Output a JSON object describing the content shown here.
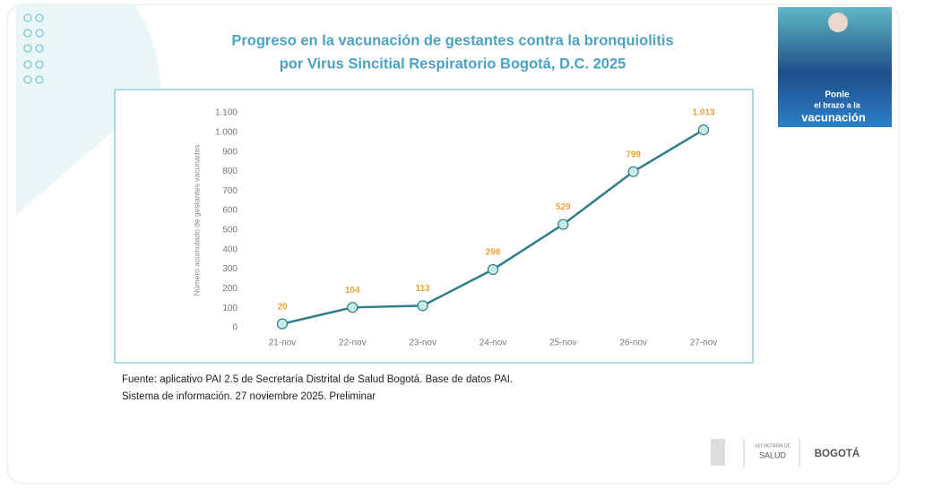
{
  "chart_data": {
    "type": "line",
    "title_lines": [
      "Progreso en la vacunación de gestantes contra la bronquiolitis",
      "por Virus Sincitial Respiratorio Bogotá, D.C. 2025"
    ],
    "y_label": "Número acumulado de gestantes vacunadas",
    "categories": [
      "21-nov",
      "22-nov",
      "23-nov",
      "24-nov",
      "25-nov",
      "26-nov",
      "27-nov"
    ],
    "values": [
      20,
      104,
      113,
      298,
      529,
      799,
      1013
    ],
    "value_labels": [
      "20",
      "104",
      "113",
      "298",
      "529",
      "799",
      "1.013"
    ],
    "color": "#2e7f89",
    "marker_color": "#c9ece6",
    "label_color": "#e9a43b",
    "ylim": [
      0,
      1100
    ],
    "yticks": [
      0,
      100,
      200,
      300,
      400,
      500,
      600,
      700,
      800,
      900,
      {
        "value": 1000,
        "label": "1.000"
      },
      {
        "value": 1100,
        "label": "1.100"
      }
    ],
    "grid": false,
    "source_lines": [
      "Fuente: aplicativo PAI 2.5 de Secretaría Distrital de Salud Bogotá. Base de datos PAI.",
      "Sistema de información. 27 noviembre 2025. Preliminar"
    ]
  },
  "banner": {
    "lines": [
      "Ponle",
      "el brazo a la",
      "vacunación"
    ]
  },
  "logos": {
    "health": [
      "SECRETARÍA DE",
      "SALUD"
    ],
    "city": "BOGOTÁ"
  }
}
